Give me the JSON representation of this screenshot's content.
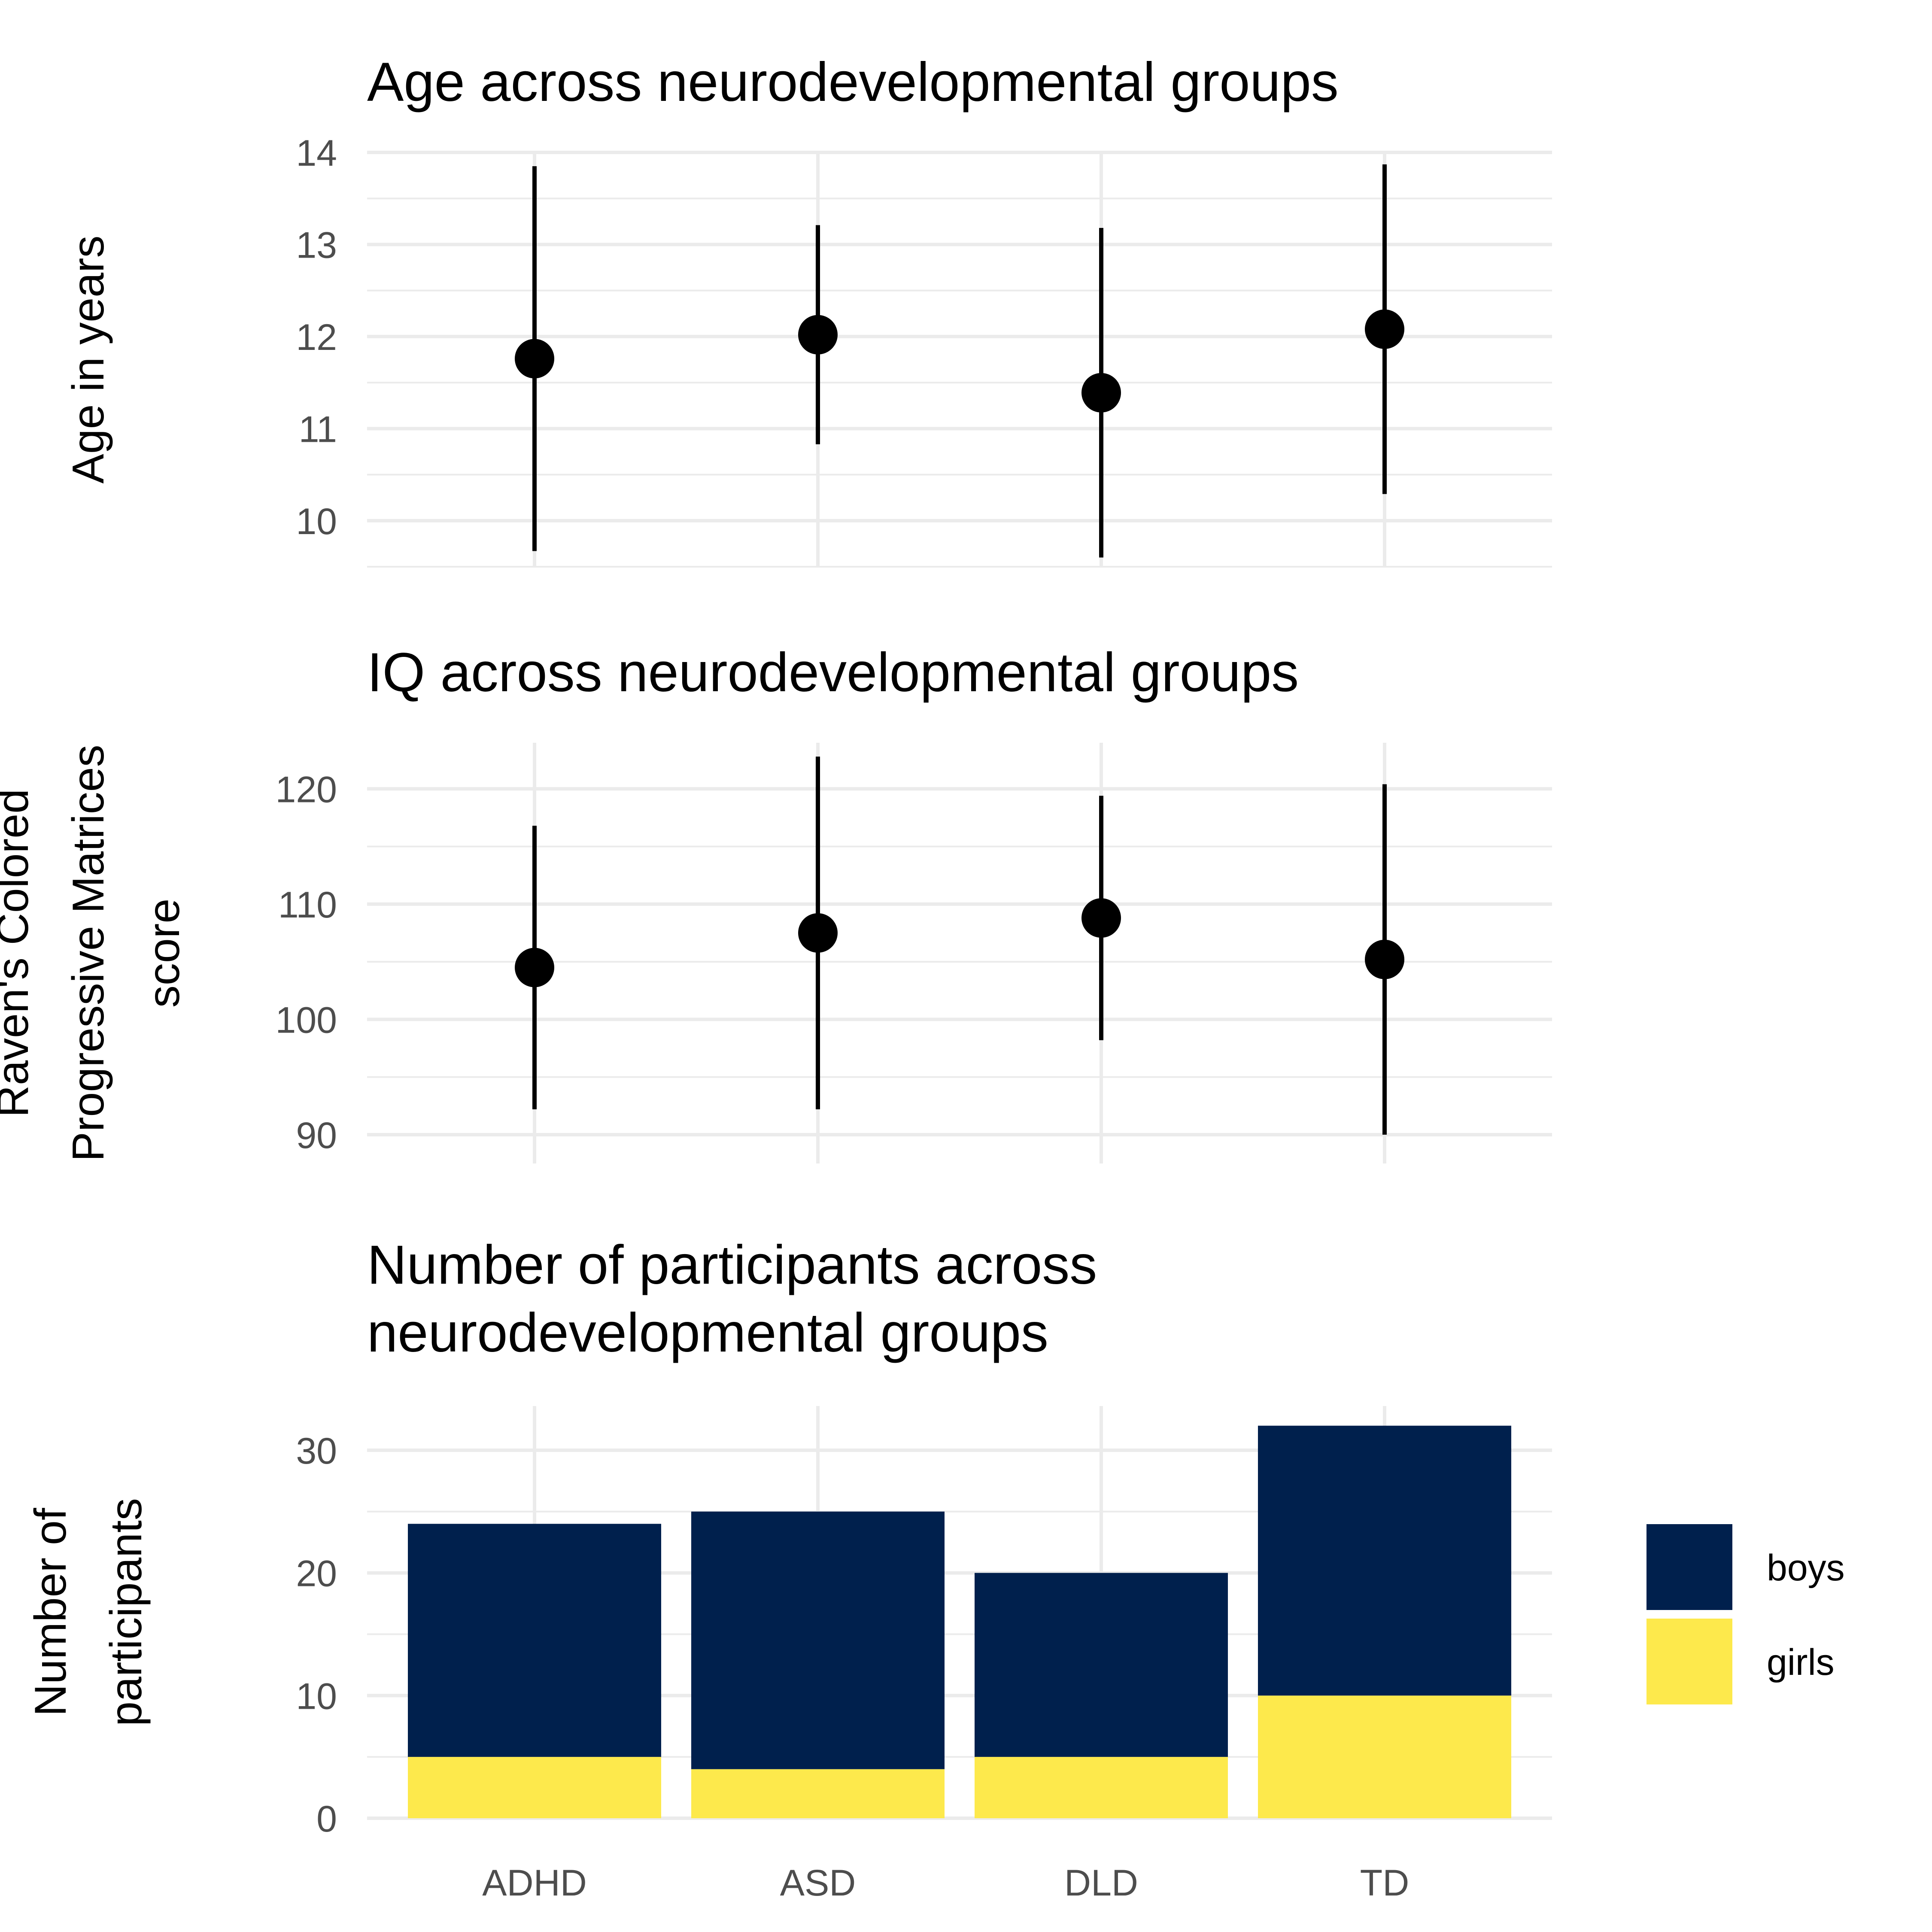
{
  "chart_data": [
    {
      "type": "scatter",
      "title": "Age across neurodevelopmental groups",
      "ylabel": [
        "Age in years"
      ],
      "categories": [
        "ADHD",
        "ASD",
        "DLD",
        "TD"
      ],
      "mean": [
        11.76,
        12.02,
        11.39,
        12.08
      ],
      "lower": [
        9.67,
        10.83,
        9.6,
        10.29
      ],
      "upper": [
        13.85,
        13.21,
        13.18,
        13.87
      ],
      "ylim": [
        9.5,
        14.0
      ],
      "yticks": [
        10,
        11,
        12,
        13,
        14
      ],
      "grid": true,
      "show_x_tick_labels": false
    },
    {
      "type": "scatter",
      "title": "IQ across neurodevelopmental groups",
      "ylabel": [
        "Raven's Colored",
        "Progressive Matrices",
        "score"
      ],
      "categories": [
        "ADHD",
        "ASD",
        "DLD",
        "TD"
      ],
      "mean": [
        104.5,
        107.5,
        108.8,
        105.2
      ],
      "lower": [
        92.2,
        92.2,
        98.2,
        90.0
      ],
      "upper": [
        116.8,
        122.8,
        119.4,
        120.4
      ],
      "ylim": [
        87.5,
        124.0
      ],
      "yticks": [
        90,
        100,
        110,
        120
      ],
      "grid": true,
      "show_x_tick_labels": false
    },
    {
      "type": "bar",
      "stacked": true,
      "title": [
        "Number of participants across",
        "neurodevelopmental groups"
      ],
      "ylabel": [
        "Number of",
        "participants"
      ],
      "categories": [
        "ADHD",
        "ASD",
        "DLD",
        "TD"
      ],
      "series": [
        {
          "name": "girls",
          "values": [
            5,
            4,
            5,
            10
          ],
          "color": "#FDE94C"
        },
        {
          "name": "boys",
          "values": [
            19,
            21,
            15,
            22
          ],
          "color": "#00204D"
        }
      ],
      "ylim": [
        0,
        33.6
      ],
      "yticks": [
        0,
        10,
        20,
        30
      ],
      "grid": true,
      "legend": "right",
      "legend_order": [
        "boys",
        "girls"
      ],
      "show_x_tick_labels": true
    }
  ]
}
